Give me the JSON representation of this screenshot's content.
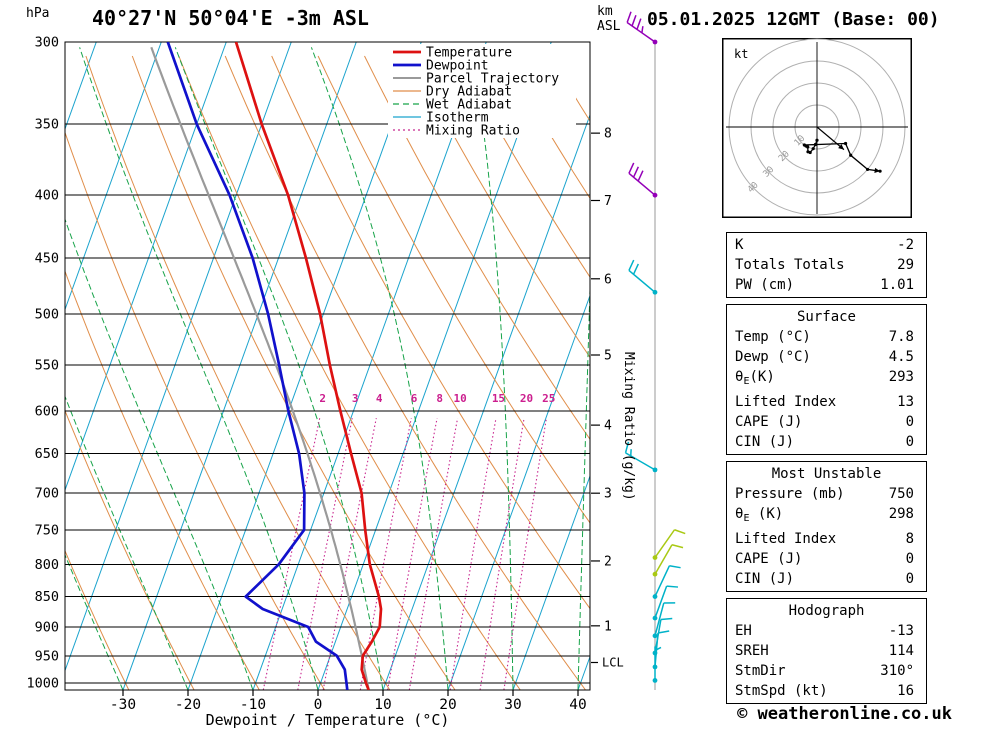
{
  "header": {
    "pressure_unit": "hPa",
    "station": "40°27'N 50°04'E -3m ASL",
    "altitude_unit_line1": "km",
    "altitude_unit_line2": "ASL",
    "datetime": "05.01.2025 12GMT (Base: 00)"
  },
  "legend": [
    {
      "label": "Temperature",
      "color": "#dd1111",
      "style": "solid",
      "lw": 2.8
    },
    {
      "label": "Dewpoint",
      "color": "#1111cc",
      "style": "solid",
      "lw": 2.8
    },
    {
      "label": "Parcel Trajectory",
      "color": "#9a9a9a",
      "style": "solid",
      "lw": 2.0
    },
    {
      "label": "Dry Adiabat",
      "color": "#e08e4a",
      "style": "solid",
      "lw": 1.2
    },
    {
      "label": "Wet Adiabat",
      "color": "#17a349",
      "style": "dashed",
      "lw": 1.2
    },
    {
      "label": "Isotherm",
      "color": "#1ba3cd",
      "style": "solid",
      "lw": 1.2
    },
    {
      "label": "Mixing Ratio",
      "color": "#c8278f",
      "style": "dotted",
      "lw": 1.2
    }
  ],
  "chart_data": {
    "type": "skewt_log_p",
    "xlabel": "Dewpoint / Temperature (°C)",
    "x_ticks": [
      -30,
      -20,
      -10,
      0,
      10,
      20,
      30,
      40
    ],
    "pressure_ticks": [
      300,
      350,
      400,
      450,
      500,
      550,
      600,
      650,
      700,
      750,
      800,
      850,
      900,
      950,
      1000
    ],
    "pressure_range": [
      300,
      1013
    ],
    "isotherm_step": 10,
    "dry_adiabat_step": 10,
    "wet_adiabat_step": 10,
    "mixing_ratio_lines": [
      2,
      3,
      4,
      6,
      8,
      10,
      15,
      20,
      25
    ],
    "mixing_ratio_axis_label": "Mixing Ratio (g/kg)",
    "km_ticks": [
      {
        "label": "8",
        "p": 356
      },
      {
        "label": "7",
        "p": 404
      },
      {
        "label": "6",
        "p": 468
      },
      {
        "label": "5",
        "p": 540
      },
      {
        "label": "4",
        "p": 616
      },
      {
        "label": "3",
        "p": 700
      },
      {
        "label": "2",
        "p": 795
      },
      {
        "label": "1",
        "p": 898
      }
    ],
    "lcl": {
      "label": "LCL",
      "p": 962
    },
    "temperature_profile": [
      [
        1013,
        7.8
      ],
      [
        1000,
        7.0
      ],
      [
        975,
        5.6
      ],
      [
        950,
        5.0
      ],
      [
        925,
        5.6
      ],
      [
        900,
        6.0
      ],
      [
        870,
        5.2
      ],
      [
        850,
        4.2
      ],
      [
        800,
        1.0
      ],
      [
        750,
        -1.6
      ],
      [
        700,
        -4.2
      ],
      [
        650,
        -8.0
      ],
      [
        600,
        -12.0
      ],
      [
        550,
        -16.2
      ],
      [
        500,
        -20.5
      ],
      [
        450,
        -25.8
      ],
      [
        400,
        -32.0
      ],
      [
        350,
        -40.0
      ],
      [
        300,
        -48.5
      ]
    ],
    "dewpoint_profile": [
      [
        1013,
        4.5
      ],
      [
        1000,
        4.0
      ],
      [
        975,
        3.0
      ],
      [
        950,
        1.0
      ],
      [
        925,
        -3.0
      ],
      [
        900,
        -5.0
      ],
      [
        870,
        -13.0
      ],
      [
        850,
        -16.3
      ],
      [
        800,
        -13.0
      ],
      [
        750,
        -11.0
      ],
      [
        700,
        -13.0
      ],
      [
        650,
        -16.0
      ],
      [
        600,
        -20.0
      ],
      [
        550,
        -24.0
      ],
      [
        500,
        -28.5
      ],
      [
        450,
        -34.0
      ],
      [
        400,
        -41.0
      ],
      [
        350,
        -50.0
      ],
      [
        300,
        -59.0
      ]
    ],
    "parcel_start": {
      "p": 1013,
      "t": 7.8,
      "td": 4.5
    },
    "wind_barbs": [
      {
        "p": 300,
        "dir": 305,
        "spd": 35,
        "color": "#9400b8"
      },
      {
        "p": 400,
        "dir": 310,
        "spd": 30,
        "color": "#9400b8"
      },
      {
        "p": 480,
        "dir": 310,
        "spd": 20,
        "color": "#00b2c8"
      },
      {
        "p": 670,
        "dir": 300,
        "spd": 15,
        "color": "#00b2c8"
      },
      {
        "p": 790,
        "dir": 35,
        "spd": 10,
        "color": "#a9c913"
      },
      {
        "p": 815,
        "dir": 30,
        "spd": 10,
        "color": "#a9c913"
      },
      {
        "p": 850,
        "dir": 25,
        "spd": 10,
        "color": "#00b2c8"
      },
      {
        "p": 885,
        "dir": 20,
        "spd": 12,
        "color": "#00b2c8"
      },
      {
        "p": 915,
        "dir": 15,
        "spd": 12,
        "color": "#00b2c8"
      },
      {
        "p": 945,
        "dir": 10,
        "spd": 10,
        "color": "#00b2c8"
      },
      {
        "p": 970,
        "dir": 5,
        "spd": 8,
        "color": "#00b2c8"
      },
      {
        "p": 995,
        "dir": 360,
        "spd": 6,
        "color": "#00b2c8"
      }
    ]
  },
  "hodograph": {
    "unit_label": "kt",
    "rings_kt": [
      10,
      20,
      30,
      40
    ],
    "storm": {
      "dir_deg": 310,
      "speed_kt": 16
    }
  },
  "tables": [
    {
      "name": "indices",
      "header": "",
      "rows": [
        {
          "label": "K",
          "value": "-2"
        },
        {
          "label": "Totals Totals",
          "value": "29"
        },
        {
          "label": "PW (cm)",
          "value": "1.01"
        }
      ]
    },
    {
      "name": "surface",
      "header": "Surface",
      "rows": [
        {
          "label": "Temp (°C)",
          "value": "7.8"
        },
        {
          "label": "Dewp (°C)",
          "value": "4.5"
        },
        {
          "label": "θ",
          "sub": "E",
          "rest": "(K)",
          "value": "293"
        },
        {
          "label": "Lifted Index",
          "value": "13"
        },
        {
          "label": "CAPE (J)",
          "value": "0"
        },
        {
          "label": "CIN (J)",
          "value": "0"
        }
      ]
    },
    {
      "name": "most-unstable",
      "header": "Most Unstable",
      "rows": [
        {
          "label": "Pressure (mb)",
          "value": "750"
        },
        {
          "label": "θ",
          "sub": "E",
          "rest": " (K)",
          "value": "298"
        },
        {
          "label": "Lifted Index",
          "value": "8"
        },
        {
          "label": "CAPE (J)",
          "value": "0"
        },
        {
          "label": "CIN (J)",
          "value": "0"
        }
      ]
    },
    {
      "name": "hodograph",
      "header": "Hodograph",
      "rows": [
        {
          "label": "EH",
          "value": "-13"
        },
        {
          "label": "SREH",
          "value": "114"
        },
        {
          "label": "StmDir",
          "value": "310°"
        },
        {
          "label": "StmSpd (kt)",
          "value": "16"
        }
      ]
    }
  ],
  "footer": {
    "copyright": "© weatheronline.co.uk"
  }
}
